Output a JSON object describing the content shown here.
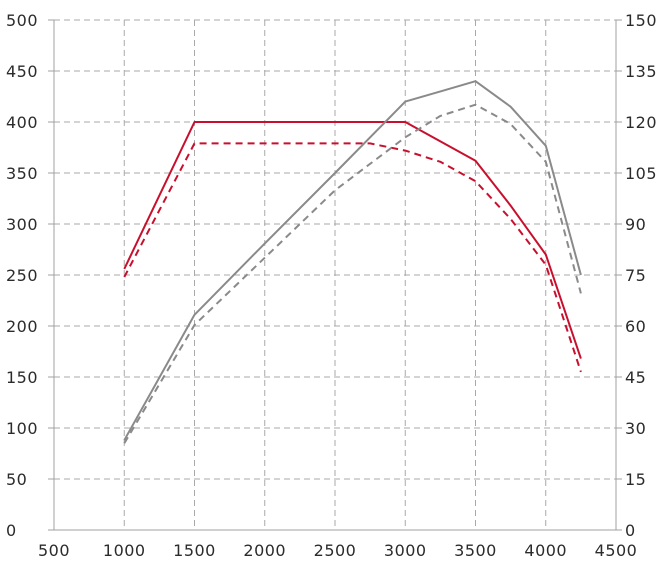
{
  "chart_data": {
    "type": "line",
    "title": "",
    "xlabel": "",
    "ylabel": "",
    "y2label": "",
    "xlim": [
      500,
      4500
    ],
    "ylim": [
      0,
      500
    ],
    "y2lim": [
      0,
      150
    ],
    "grid": true,
    "legend": "none",
    "x_ticks": [
      "500",
      "1000",
      "1500",
      "2000",
      "2500",
      "3000",
      "3500",
      "4000",
      "4500"
    ],
    "y_ticks_left": [
      "0",
      "50",
      "100",
      "150",
      "200",
      "250",
      "300",
      "350",
      "400",
      "450",
      "500"
    ],
    "y_ticks_right": [
      "0",
      "15",
      "30",
      "45",
      "60",
      "75",
      "90",
      "105",
      "120",
      "135",
      "150"
    ],
    "series": [
      {
        "axis": "left",
        "color": "#c8102e",
        "dash": false,
        "x": [
          1000,
          1500,
          2000,
          2500,
          3000,
          3500,
          3750,
          4000,
          4250
        ],
        "y": [
          256,
          400,
          400,
          400,
          400,
          362,
          318,
          270,
          168
        ]
      },
      {
        "axis": "left",
        "color": "#c8102e",
        "dash": true,
        "x": [
          1000,
          1500,
          2000,
          2500,
          2750,
          3000,
          3250,
          3500,
          3750,
          4000,
          4250
        ],
        "y": [
          248,
          379,
          379,
          379,
          379,
          372,
          361,
          342,
          305,
          260,
          155
        ]
      },
      {
        "axis": "right",
        "color": "#8a8a8a",
        "dash": false,
        "x": [
          1000,
          1500,
          2000,
          2500,
          3000,
          3250,
          3500,
          3750,
          4000,
          4250
        ],
        "y": [
          26.4,
          63.3,
          84.3,
          105,
          126,
          129,
          132,
          124.5,
          113,
          75
        ]
      },
      {
        "axis": "right",
        "color": "#8a8a8a",
        "dash": true,
        "x": [
          1000,
          1500,
          2000,
          2500,
          3000,
          3250,
          3500,
          3750,
          4000,
          4250
        ],
        "y": [
          25.5,
          60.3,
          80.1,
          99.9,
          115.5,
          121.8,
          125.1,
          119.4,
          108.3,
          69.6
        ]
      }
    ]
  }
}
